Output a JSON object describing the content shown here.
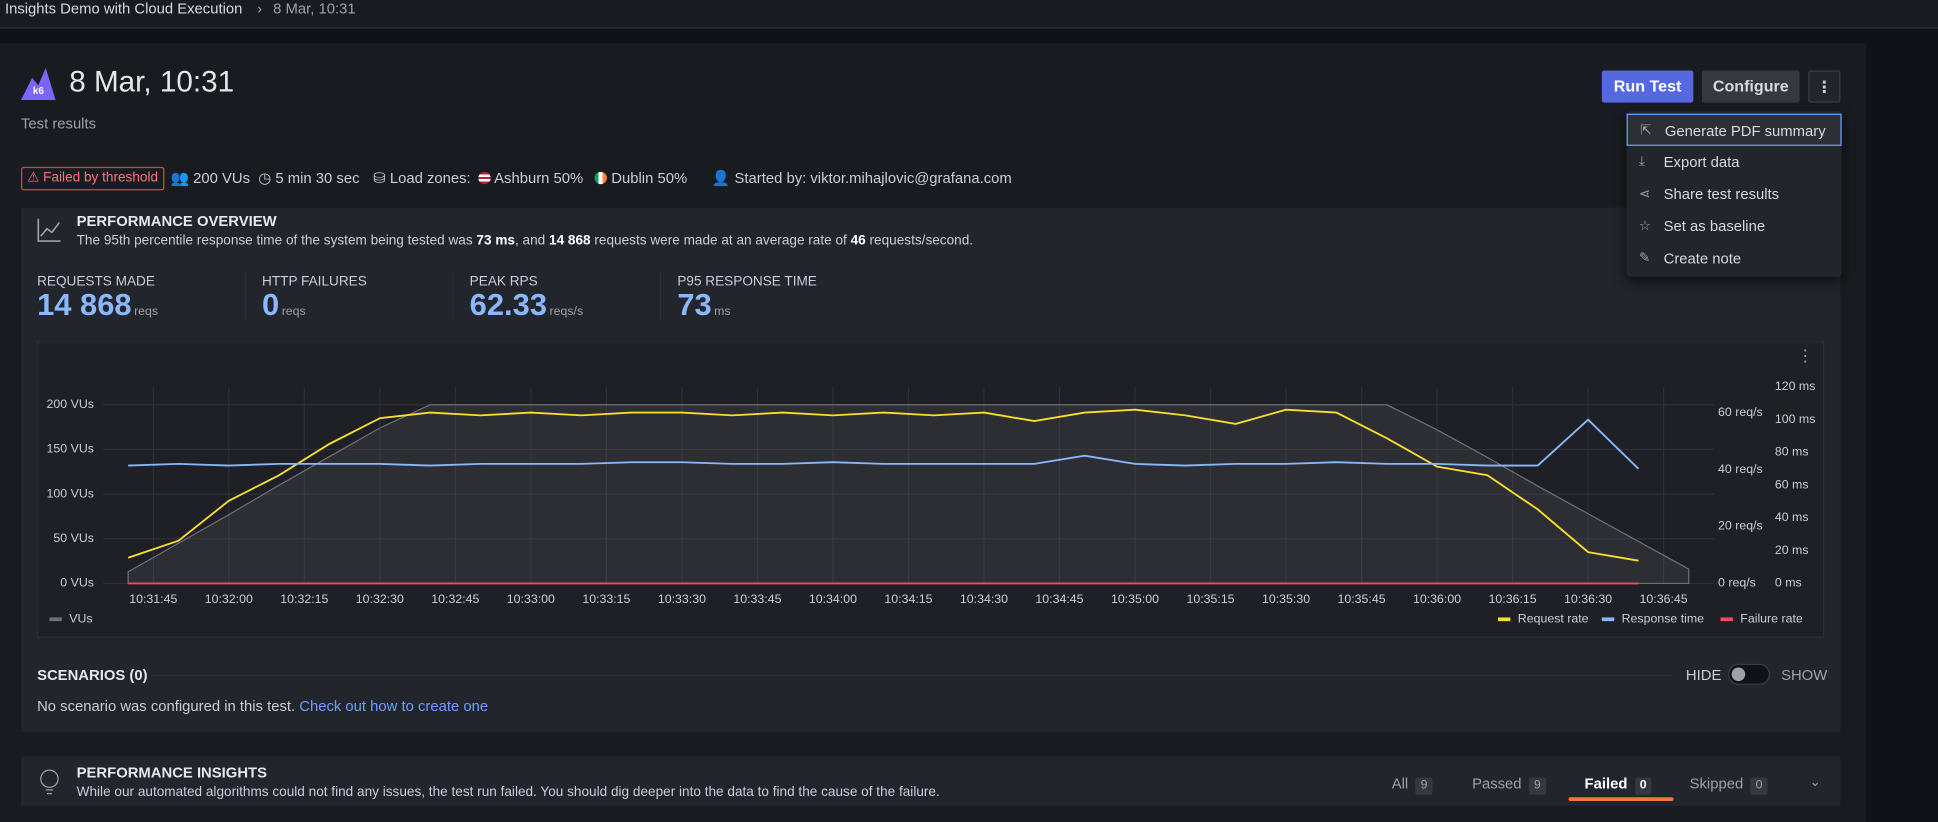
{
  "breadcrumb": [
    "Insights Demo with Cloud Execution",
    "8 Mar, 10:31"
  ],
  "header": {
    "title": "8 Mar, 10:31",
    "subtitle": "Test results",
    "buttons": [
      "Run Test",
      "Configure"
    ]
  },
  "menu": [
    "Generate PDF summary",
    "Export data",
    "Share test results",
    "Set as baseline",
    "Create note"
  ],
  "meta": {
    "badge": "Failed by threshold",
    "vus": "200 VUs",
    "duration": "5 min 30 sec",
    "load_zones": "Load zones:",
    "zones": [
      {
        "name": "Ashburn",
        "share": "50%"
      },
      {
        "name": "Dublin",
        "share": "50%"
      }
    ],
    "started": "Started by: viktor.mihajlovic@grafana.com"
  },
  "overview": {
    "title": "PERFORMANCE OVERVIEW",
    "summary": [
      {
        "text": "The 95th percentile response time of the system being tested was ",
        "bold": false
      },
      {
        "text": "73 ms",
        "bold": true
      },
      {
        "text": ", and ",
        "bold": false
      },
      {
        "text": "14 868",
        "bold": true
      },
      {
        "text": " requests were made at an average rate of ",
        "bold": false
      },
      {
        "text": "46",
        "bold": true
      },
      {
        "text": " requests/second.",
        "bold": false
      }
    ],
    "stats": [
      {
        "label": "REQUESTS MADE",
        "value": "14 868",
        "unit": "reqs"
      },
      {
        "label": "HTTP FAILURES",
        "value": "0",
        "unit": "reqs"
      },
      {
        "label": "PEAK RPS",
        "value": "62.33",
        "unit": "reqs/s"
      },
      {
        "label": "P95 RESPONSE TIME",
        "value": "73",
        "unit": "ms"
      }
    ]
  },
  "chart": {
    "type": "line",
    "x": [
      "10:31:40",
      "10:31:50",
      "10:32:00",
      "10:32:10",
      "10:32:20",
      "10:32:30",
      "10:32:40",
      "10:32:50",
      "10:33:00",
      "10:33:10",
      "10:33:20",
      "10:33:30",
      "10:33:40",
      "10:33:50",
      "10:34:00",
      "10:34:10",
      "10:34:20",
      "10:34:30",
      "10:34:40",
      "10:34:50",
      "10:35:00",
      "10:35:10",
      "10:35:20",
      "10:35:30",
      "10:35:40",
      "10:35:50",
      "10:36:00",
      "10:36:10",
      "10:36:20",
      "10:36:30",
      "10:36:40",
      "10:36:50"
    ],
    "xlim": [
      "10:31:35",
      "10:36:55"
    ],
    "xticks": [
      "10:31:45",
      "10:32:00",
      "10:32:15",
      "10:32:30",
      "10:32:45",
      "10:33:00",
      "10:33:15",
      "10:33:30",
      "10:33:45",
      "10:34:00",
      "10:34:15",
      "10:34:30",
      "10:34:45",
      "10:35:00",
      "10:35:15",
      "10:35:30",
      "10:35:45",
      "10:36:00",
      "10:36:15",
      "10:36:30",
      "10:36:45"
    ],
    "ylim": [
      0,
      220
    ],
    "yticks": [
      {
        "value": 0,
        "label": "0 VUs"
      },
      {
        "value": 50,
        "label": "50 VUs"
      },
      {
        "value": 100,
        "label": "100 VUs"
      },
      {
        "value": 150,
        "label": "150 VUs"
      },
      {
        "value": 200,
        "label": "200 VUs"
      }
    ],
    "y2lim": [
      0,
      69
    ],
    "y2ticks": [
      {
        "value": 0,
        "label": "0 req/s"
      },
      {
        "value": 20,
        "label": "20 req/s"
      },
      {
        "value": 40,
        "label": "40 req/s"
      },
      {
        "value": 60,
        "label": "60 req/s"
      }
    ],
    "y3lim": [
      0,
      120
    ],
    "y3ticks": [
      {
        "value": 0,
        "label": "0 ms"
      },
      {
        "value": 20,
        "label": "20 ms"
      },
      {
        "value": 40,
        "label": "40 ms"
      },
      {
        "value": 60,
        "label": "60 ms"
      },
      {
        "value": 80,
        "label": "80 ms"
      },
      {
        "value": 100,
        "label": "100 ms"
      },
      {
        "value": 120,
        "label": "120 ms"
      }
    ],
    "grid": true,
    "series": [
      {
        "name": "VUs",
        "color": "#6e6f73",
        "axis": "y",
        "area": true,
        "values": [
          13,
          45,
          77,
          110,
          142,
          174,
          200,
          200,
          200,
          200,
          200,
          200,
          200,
          200,
          200,
          200,
          200,
          200,
          200,
          200,
          200,
          200,
          200,
          200,
          200,
          200,
          172,
          141,
          109,
          78,
          47,
          16
        ]
      },
      {
        "name": "Request rate",
        "color": "#fade2a",
        "axis": "y2",
        "values": [
          9,
          15,
          29,
          38,
          49,
          58,
          60,
          59,
          60,
          59,
          60,
          60,
          59,
          60,
          59,
          60,
          59,
          60,
          57,
          60,
          61,
          59,
          56,
          61,
          60,
          51,
          41,
          38,
          26,
          11,
          8,
          null
        ]
      },
      {
        "name": "Response time",
        "color": "#8ab8ff",
        "axis": "y3",
        "values": [
          72,
          73,
          72,
          73,
          73,
          73,
          72,
          73,
          73,
          73,
          74,
          74,
          73,
          73,
          74,
          73,
          73,
          73,
          73,
          78,
          73,
          72,
          73,
          73,
          74,
          73,
          73,
          72,
          72,
          100,
          70,
          null
        ]
      },
      {
        "name": "Failure rate",
        "color": "#f2495c",
        "axis": "y2",
        "values": [
          0,
          0,
          0,
          0,
          0,
          0,
          0,
          0,
          0,
          0,
          0,
          0,
          0,
          0,
          0,
          0,
          0,
          0,
          0,
          0,
          0,
          0,
          0,
          0,
          0,
          0,
          0,
          0,
          0,
          0,
          0,
          null
        ]
      }
    ]
  },
  "scenarios": {
    "title": "SCENARIOS (0)",
    "hide": "HIDE",
    "show": "SHOW",
    "text": "No scenario was configured in this test.",
    "link": "Check out how to create one"
  },
  "insights": {
    "title": "PERFORMANCE INSIGHTS",
    "text": "While our automated algorithms could not find any issues, the test run failed. You should dig deeper into the data to find the cause of the failure.",
    "active": 2,
    "tabs": [
      {
        "label": "All",
        "count": 9
      },
      {
        "label": "Passed",
        "count": 9
      },
      {
        "label": "Failed",
        "count": 0
      },
      {
        "label": "Skipped",
        "count": 0
      }
    ]
  }
}
